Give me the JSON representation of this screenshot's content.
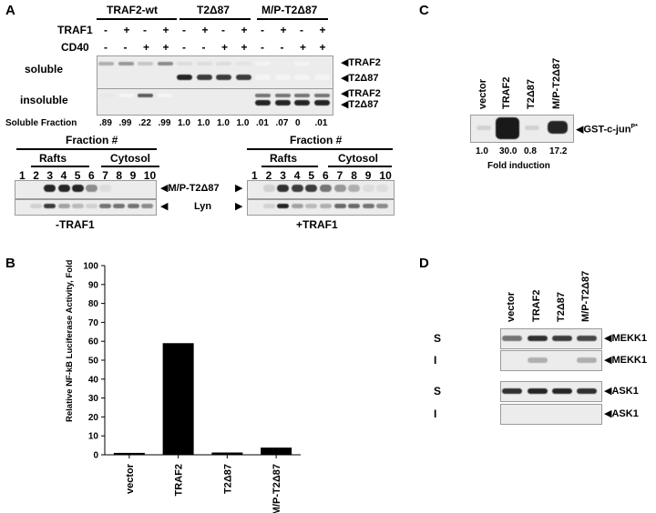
{
  "panelA": {
    "letter": "A",
    "groups": [
      "TRAF2-wt",
      "T2Δ87",
      "M/P-T2Δ87"
    ],
    "row_traf1": {
      "label": "TRAF1",
      "signs": [
        "-",
        "+",
        "-",
        "+",
        "-",
        "+",
        "-",
        "+",
        "-",
        "+",
        "-",
        "+"
      ]
    },
    "row_cd40": {
      "label": "CD40",
      "signs": [
        "-",
        "-",
        "+",
        "+",
        "-",
        "-",
        "+",
        "+",
        "-",
        "-",
        "+",
        "+"
      ]
    },
    "soluble_label": "soluble",
    "insoluble_label": "insoluble",
    "markers": {
      "traf2": "TRAF2",
      "t2d87": "T2Δ87"
    },
    "soluble_fraction_label": "Soluble Fraction",
    "soluble_fraction_values": [
      ".89",
      ".99",
      ".22",
      ".99",
      "1.0",
      "1.0",
      "1.0",
      "1.0",
      ".01",
      ".07",
      "0",
      ".01"
    ],
    "fraction_title": "Fraction #",
    "rafts": "Rafts",
    "cytosol": "Cytosol",
    "fraction_numbers": [
      "1",
      "2",
      "3",
      "4",
      "5",
      "6",
      "7",
      "8",
      "9",
      "10"
    ],
    "right_label_mp": "M/P-T2Δ87",
    "right_label_lyn": "Lyn",
    "minus_traf1": "-TRAF1",
    "plus_traf1": "+TRAF1"
  },
  "panelB": {
    "letter": "B",
    "chart_data": {
      "type": "bar",
      "categories": [
        "vector",
        "TRAF2",
        "T2Δ87",
        "M/P-T2Δ87"
      ],
      "values": [
        1,
        59,
        1.2,
        3.8
      ],
      "ylabel": "Relative NF-kB Luciferase Activity, Fold",
      "ylim": [
        0,
        100
      ],
      "yticks": [
        "0",
        "10",
        "20",
        "30",
        "40",
        "50",
        "60",
        "70",
        "80",
        "90",
        "100"
      ],
      "bar_color": "#000000"
    }
  },
  "panelC": {
    "letter": "C",
    "lanes": [
      "vector",
      "TRAF2",
      "T2Δ87",
      "M/P-T2Δ87"
    ],
    "band_label": "GST-c-jun",
    "band_label_sup": "P*",
    "fold_values": [
      "1.0",
      "30.0",
      "0.8",
      "17.2"
    ],
    "fold_label": "Fold induction"
  },
  "panelD": {
    "letter": "D",
    "lanes": [
      "vector",
      "TRAF2",
      "T2Δ87",
      "M/P-T2Δ87"
    ],
    "rows": [
      {
        "side": "S",
        "label": "MEKK1"
      },
      {
        "side": "I",
        "label": "MEKK1"
      },
      {
        "side": "S",
        "label": "ASK1"
      },
      {
        "side": "I",
        "label": "ASK1"
      }
    ]
  }
}
